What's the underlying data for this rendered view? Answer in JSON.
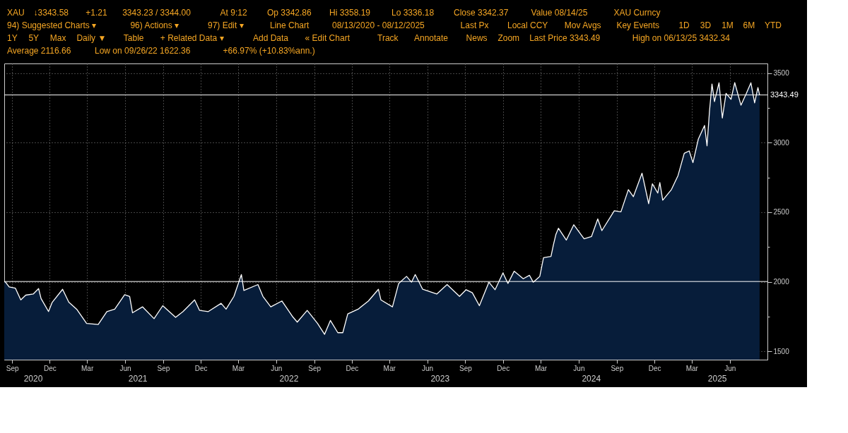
{
  "chart_data": {
    "type": "area",
    "annotations": [
      "XAU",
      "↓3343.58",
      "+1.21",
      "3343.23 / 3344.00",
      "At 9:12",
      "Op 3342.86",
      "Hi 3358.19",
      "Lo 3336.18",
      "Close 3342.37",
      "Value 08/14/25",
      "XAU Curncy",
      "94) Suggested Charts ▾",
      "96) Actions ▾",
      "97) Edit ▾",
      "Line Chart",
      "08/13/2020 - 08/12/2025",
      "Last Px",
      "Local CCY",
      "Mov Avgs",
      "Key Events",
      "1D",
      "3D",
      "1M",
      "6M",
      "YTD",
      "1Y",
      "5Y",
      "Max",
      "Daily ▼",
      "Table",
      "+ Related Data ▾",
      "Add Data",
      "« Edit Chart",
      "Track",
      "Annotate",
      "News",
      "Zoom",
      "Last Price 3343.49",
      "High on 06/13/25 3432.34",
      "Average 2116.66",
      "Low on 09/26/22 1622.36",
      "+66.97% (+10.83%ann.)",
      "2020",
      "2021",
      "2022",
      "2023",
      "2024",
      "2025"
    ],
    "x": [
      "2020-08-13",
      "2020-08-16",
      "2020-08-25",
      "2020-09-09",
      "2020-09-22",
      "2020-10-04",
      "2020-10-22",
      "2020-11-04",
      "2020-11-10",
      "2020-11-28",
      "2020-12-07",
      "2021-01-01",
      "2021-01-16",
      "2021-02-04",
      "2021-02-28",
      "2021-03-28",
      "2021-04-18",
      "2021-05-07",
      "2021-05-31",
      "2021-06-12",
      "2021-06-19",
      "2021-07-13",
      "2021-08-10",
      "2021-08-31",
      "2021-10-01",
      "2021-10-19",
      "2021-11-16",
      "2021-11-28",
      "2021-12-19",
      "2022-01-19",
      "2022-01-31",
      "2022-02-19",
      "2022-03-09",
      "2022-03-15",
      "2022-04-18",
      "2022-04-30",
      "2022-05-19",
      "2022-06-15",
      "2022-07-10",
      "2022-07-22",
      "2022-08-15",
      "2022-09-09",
      "2022-09-26",
      "2022-10-10",
      "2022-10-28",
      "2022-11-09",
      "2022-11-21",
      "2022-12-16",
      "2023-01-10",
      "2023-02-03",
      "2023-02-09",
      "2023-03-09",
      "2023-03-24",
      "2023-04-12",
      "2023-04-24",
      "2023-05-03",
      "2023-05-21",
      "2023-06-24",
      "2023-07-19",
      "2023-08-18",
      "2023-09-03",
      "2023-09-18",
      "2023-10-05",
      "2023-10-28",
      "2023-11-12",
      "2023-12-01",
      "2023-12-13",
      "2023-12-28",
      "2024-01-19",
      "2024-02-03",
      "2024-02-12",
      "2024-02-28",
      "2024-03-08",
      "2024-03-26",
      "2024-04-01",
      "2024-04-07",
      "2024-04-13",
      "2024-05-02",
      "2024-05-20",
      "2024-06-14",
      "2024-07-02",
      "2024-07-17",
      "2024-07-27",
      "2024-08-26",
      "2024-09-11",
      "2024-09-29",
      "2024-10-11",
      "2024-11-01",
      "2024-11-17",
      "2024-11-26",
      "2024-12-09",
      "2024-12-14",
      "2024-12-21",
      "2025-01-11",
      "2025-01-27",
      "2025-02-11",
      "2025-02-23",
      "2025-03-04",
      "2025-03-17",
      "2025-04-01",
      "2025-04-07",
      "2025-04-13",
      "2025-04-19",
      "2025-04-25",
      "2025-05-06",
      "2025-05-14",
      "2025-05-23",
      "2025-06-04",
      "2025-06-13",
      "2025-06-28",
      "2025-07-11",
      "2025-07-22",
      "2025-07-31",
      "2025-08-08",
      "2025-08-12"
    ],
    "series": [
      {
        "color": "#ffffff",
        "values": [
          2002,
          1997,
          1963,
          1954,
          1870,
          1904,
          1912,
          1951,
          1879,
          1786,
          1853,
          1946,
          1853,
          1803,
          1701,
          1693,
          1786,
          1803,
          1907,
          1895,
          1777,
          1820,
          1735,
          1828,
          1744,
          1786,
          1870,
          1794,
          1786,
          1845,
          1803,
          1895,
          2052,
          1938,
          1980,
          1895,
          1820,
          1862,
          1752,
          1710,
          1794,
          1701,
          1622,
          1722,
          1634,
          1634,
          1769,
          1803,
          1862,
          1946,
          1870,
          1820,
          1988,
          2039,
          1997,
          2052,
          1946,
          1912,
          1980,
          1895,
          1943,
          1921,
          1828,
          1997,
          1943,
          2064,
          1988,
          2076,
          2022,
          2047,
          1997,
          2039,
          2174,
          2182,
          2267,
          2342,
          2385,
          2300,
          2410,
          2309,
          2326,
          2452,
          2368,
          2511,
          2503,
          2663,
          2612,
          2781,
          2562,
          2705,
          2638,
          2714,
          2587,
          2663,
          2764,
          2924,
          2941,
          2857,
          3026,
          3124,
          2978,
          3228,
          3422,
          3296,
          3431,
          3178,
          3355,
          3312,
          3432,
          3270,
          3355,
          3431,
          3287,
          3397,
          3343.49
        ]
      }
    ],
    "xlim": [
      "2020-08-13",
      "2025-08-31"
    ],
    "xticks": [
      {
        "value": "2020-09-01",
        "label": "Sep"
      },
      {
        "value": "2020-12-01",
        "label": "Dec"
      },
      {
        "value": "2021-03-01",
        "label": "Mar"
      },
      {
        "value": "2021-06-01",
        "label": "Jun"
      },
      {
        "value": "2021-09-01",
        "label": "Sep"
      },
      {
        "value": "2021-12-01",
        "label": "Dec"
      },
      {
        "value": "2022-03-01",
        "label": "Mar"
      },
      {
        "value": "2022-06-01",
        "label": "Jun"
      },
      {
        "value": "2022-09-01",
        "label": "Sep"
      },
      {
        "value": "2022-12-01",
        "label": "Dec"
      },
      {
        "value": "2023-03-01",
        "label": "Mar"
      },
      {
        "value": "2023-06-01",
        "label": "Jun"
      },
      {
        "value": "2023-09-01",
        "label": "Sep"
      },
      {
        "value": "2023-12-01",
        "label": "Dec"
      },
      {
        "value": "2024-03-01",
        "label": "Mar"
      },
      {
        "value": "2024-06-01",
        "label": "Jun"
      },
      {
        "value": "2024-09-01",
        "label": "Sep"
      },
      {
        "value": "2024-12-01",
        "label": "Dec"
      },
      {
        "value": "2025-03-01",
        "label": "Mar"
      },
      {
        "value": "2025-06-01",
        "label": "Jun"
      }
    ],
    "ylim": [
      1440,
      3570
    ],
    "yticks": [
      1500,
      {
        "value": 1750,
        "label": null
      },
      2000,
      {
        "value": 2250,
        "label": null
      },
      2500,
      {
        "value": 2750,
        "label": null
      },
      3000,
      {
        "value": 3250,
        "label": null
      },
      3500
    ],
    "ref_lines": [
      {
        "axis": "y",
        "value": 3343.49,
        "label": "3343.49",
        "color": "#ffffff"
      },
      {
        "axis": "y",
        "value": 2002,
        "label": null,
        "color": "#ffffff"
      }
    ],
    "grid": true,
    "marker": "none",
    "line_style": "solid"
  }
}
